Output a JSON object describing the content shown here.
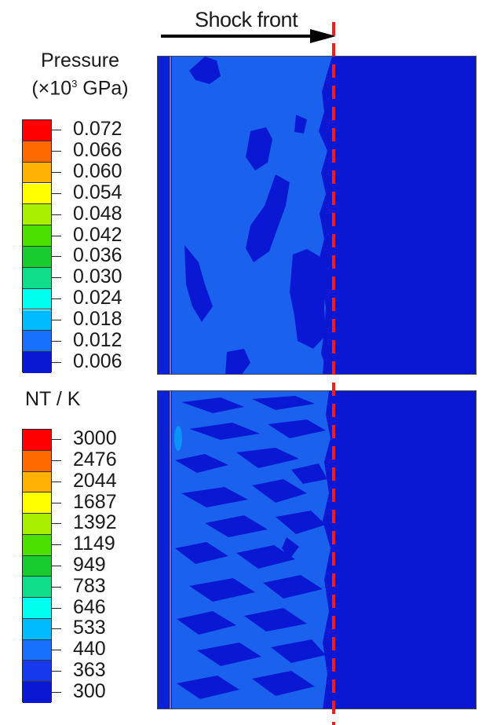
{
  "header": {
    "shock_label": "Shock front"
  },
  "pressure_legend": {
    "title_line1": "Pressure",
    "title_line2_prefix": "(×10",
    "title_line2_sup": "3",
    "title_line2_suffix": " GPa)",
    "values": [
      "0.072",
      "0.066",
      "0.060",
      "0.054",
      "0.048",
      "0.042",
      "0.036",
      "0.030",
      "0.024",
      "0.018",
      "0.012",
      "0.006"
    ],
    "colors": [
      "#ff0000",
      "#ff6a00",
      "#ffb000",
      "#ffff00",
      "#a8f000",
      "#4ce000",
      "#18cc30",
      "#10dd8a",
      "#00ffee",
      "#00bbff",
      "#1870ff",
      "#0a18d4"
    ]
  },
  "temperature_legend": {
    "title": "NT / K",
    "values": [
      "3000",
      "2476",
      "2044",
      "1687",
      "1392",
      "1149",
      "949",
      "783",
      "646",
      "533",
      "440",
      "363",
      "300"
    ],
    "colors": [
      "#ff0000",
      "#ff6a00",
      "#ffb000",
      "#ffff00",
      "#a8f000",
      "#4ce000",
      "#18cc30",
      "#10dd8a",
      "#00ffee",
      "#00bbff",
      "#1870ff",
      "#1838ee",
      "#0a18d4"
    ]
  },
  "colors": {
    "background_blue": "#0a18d4",
    "light_blue": "#1a62ee",
    "shock_line": "#ff1a1a",
    "arrow": "#000000"
  }
}
